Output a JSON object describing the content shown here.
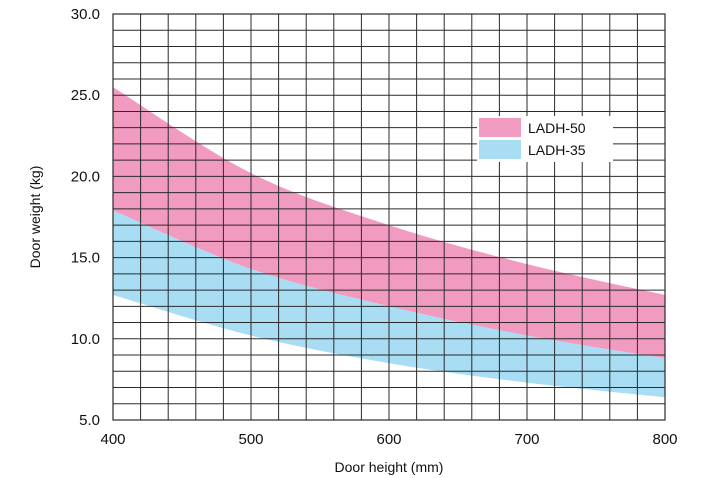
{
  "chart_data": {
    "type": "area",
    "xlabel": "Door height (mm)",
    "ylabel": "Door weight (kg)",
    "xlim": [
      400,
      800
    ],
    "ylim": [
      5,
      30
    ],
    "x_ticks": [
      400,
      500,
      600,
      700,
      800
    ],
    "x_tick_labels": [
      "400",
      "500",
      "600",
      "700",
      "800"
    ],
    "y_ticks": [
      5,
      10,
      15,
      20,
      25,
      30
    ],
    "y_tick_labels": [
      "5.0",
      "10.0",
      "15.0",
      "20.0",
      "25.0",
      "30.0"
    ],
    "x_minor_step": 20,
    "y_minor_step": 1,
    "grid": true,
    "legend_position": "upper-right",
    "x": [
      400,
      500,
      600,
      700,
      800
    ],
    "series": [
      {
        "name": "LADH-50",
        "color": "#f29bc0",
        "upper": [
          25.5,
          20.2,
          17.0,
          14.6,
          12.7
        ],
        "lower": [
          17.9,
          14.3,
          12.0,
          10.2,
          8.8
        ]
      },
      {
        "name": "LADH-35",
        "color": "#a8ddf3",
        "upper": [
          17.9,
          14.3,
          12.0,
          10.2,
          8.8
        ],
        "lower": [
          12.7,
          10.2,
          8.5,
          7.3,
          6.4
        ]
      }
    ]
  }
}
